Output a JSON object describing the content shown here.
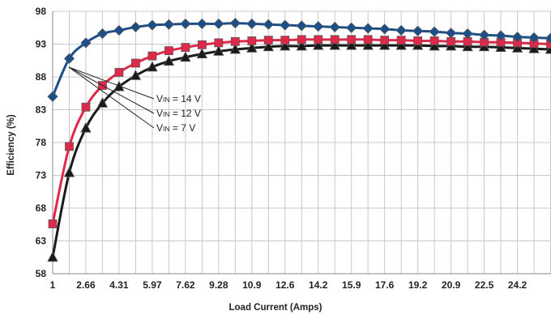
{
  "chart_data": {
    "type": "line",
    "xlabel": "Load Current (Amps)",
    "ylabel": "Efficiency (%)",
    "xlim": [
      1,
      25.86
    ],
    "ylim": [
      58,
      98
    ],
    "x_ticks": [
      "1",
      "2.66",
      "4.31",
      "5.97",
      "7.62",
      "9.28",
      "10.9",
      "12.6",
      "14.2",
      "15.9",
      "17.6",
      "19.2",
      "20.9",
      "22.5",
      "24.2"
    ],
    "y_ticks": [
      58,
      63,
      68,
      73,
      78,
      83,
      88,
      93,
      98
    ],
    "grid": true,
    "colors": {
      "vin14": "#1b4f8a",
      "vin12": "#e0284a",
      "vin7": "#1a1a1a"
    },
    "x": [
      1,
      1.828,
      2.656,
      3.484,
      4.312,
      5.14,
      5.968,
      6.796,
      7.624,
      8.452,
      9.28,
      10.108,
      10.936,
      11.764,
      12.592,
      13.42,
      14.248,
      15.076,
      15.904,
      16.732,
      17.56,
      18.388,
      19.216,
      20.044,
      20.872,
      21.7,
      22.528,
      23.356,
      24.184,
      25.012,
      25.84
    ],
    "series": [
      {
        "name": "VIN = 14 V",
        "marker": "diamond",
        "color_key": "vin14",
        "values": [
          85.0,
          90.8,
          93.2,
          94.6,
          95.1,
          95.6,
          95.9,
          96.0,
          96.1,
          96.1,
          96.1,
          96.2,
          96.1,
          96.0,
          95.9,
          95.8,
          95.7,
          95.6,
          95.5,
          95.4,
          95.3,
          95.1,
          95.0,
          94.9,
          94.7,
          94.6,
          94.4,
          94.3,
          94.1,
          94.0,
          93.9
        ]
      },
      {
        "name": "VIN = 12 V",
        "marker": "square",
        "color_key": "vin12",
        "values": [
          65.6,
          77.4,
          83.4,
          86.7,
          88.7,
          90.1,
          91.2,
          92.0,
          92.5,
          92.9,
          93.2,
          93.4,
          93.5,
          93.6,
          93.6,
          93.7,
          93.7,
          93.7,
          93.7,
          93.7,
          93.6,
          93.6,
          93.5,
          93.5,
          93.4,
          93.4,
          93.3,
          93.3,
          93.2,
          93.1,
          93.0
        ]
      },
      {
        "name": "VIN = 7 V",
        "marker": "triangle",
        "color_key": "vin7",
        "values": [
          60.5,
          73.4,
          80.2,
          84.0,
          86.5,
          88.2,
          89.5,
          90.4,
          91.0,
          91.5,
          91.9,
          92.2,
          92.4,
          92.6,
          92.7,
          92.7,
          92.8,
          92.8,
          92.8,
          92.8,
          92.8,
          92.8,
          92.8,
          92.7,
          92.7,
          92.6,
          92.6,
          92.5,
          92.4,
          92.3,
          92.2
        ]
      }
    ],
    "annotations": [
      {
        "prefix": "V",
        "sub": "IN",
        "suffix": " = 14 V",
        "series_index": 0,
        "target_point_index": 1
      },
      {
        "prefix": "V",
        "sub": "IN",
        "suffix": " = 12 V",
        "series_index": 1,
        "target_point_index": 4
      },
      {
        "prefix": "V",
        "sub": "IN",
        "suffix": " = 7 V",
        "series_index": 2,
        "target_point_index": 5
      }
    ]
  }
}
